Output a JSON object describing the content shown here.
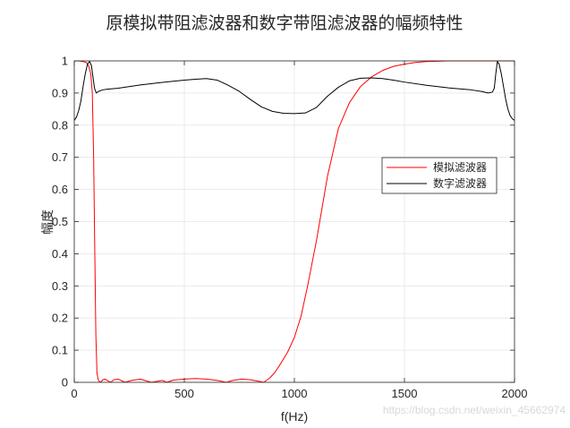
{
  "chart_data": {
    "type": "line",
    "title": "原模拟带阻滤波器和数字带阻滤波器的幅频特性",
    "xlabel": "f(Hz)",
    "ylabel": "幅度",
    "xlim": [
      0,
      2000
    ],
    "ylim": [
      0,
      1
    ],
    "xticks": [
      "0",
      "500",
      "1000",
      "1500",
      "2000"
    ],
    "yticks": [
      "0",
      "0.1",
      "0.2",
      "0.3",
      "0.4",
      "0.5",
      "0.6",
      "0.7",
      "0.8",
      "0.9",
      "1"
    ],
    "grid": true,
    "legend_position": "right",
    "series": [
      {
        "name": "模拟滤波器",
        "color": "#ff0000",
        "x": [
          0,
          20,
          40,
          55,
          65,
          75,
          82,
          88,
          93,
          98,
          103,
          108,
          113,
          120,
          130,
          140,
          150,
          165,
          180,
          200,
          230,
          260,
          300,
          350,
          400,
          420,
          450,
          500,
          550,
          600,
          650,
          690,
          720,
          760,
          800,
          840,
          860,
          875,
          890,
          910,
          930,
          950,
          970,
          1000,
          1030,
          1060,
          1100,
          1150,
          1200,
          1250,
          1300,
          1350,
          1400,
          1450,
          1500,
          1550,
          1600,
          1650,
          1700,
          1800,
          1900,
          2000
        ],
        "y": [
          1.0,
          1.0,
          0.998,
          0.995,
          0.985,
          0.96,
          0.9,
          0.7,
          0.42,
          0.15,
          0.03,
          0.01,
          0.003,
          0.0,
          0.008,
          0.01,
          0.006,
          0.0,
          0.008,
          0.01,
          0.0,
          0.006,
          0.01,
          0.0,
          0.006,
          0.0,
          0.007,
          0.01,
          0.012,
          0.01,
          0.006,
          0.0,
          0.006,
          0.01,
          0.008,
          0.003,
          0.0,
          0.007,
          0.015,
          0.03,
          0.05,
          0.072,
          0.095,
          0.14,
          0.205,
          0.3,
          0.44,
          0.64,
          0.79,
          0.87,
          0.92,
          0.95,
          0.97,
          0.983,
          0.99,
          0.995,
          0.998,
          0.999,
          1.0,
          1.0,
          1.0,
          1.0
        ]
      },
      {
        "name": "数字滤波器",
        "color": "#000000",
        "x": [
          0,
          10,
          20,
          30,
          40,
          50,
          60,
          70,
          78,
          85,
          92,
          100,
          110,
          130,
          150,
          200,
          300,
          400,
          500,
          550,
          600,
          650,
          700,
          750,
          800,
          850,
          900,
          950,
          1000,
          1050,
          1100,
          1150,
          1200,
          1250,
          1300,
          1350,
          1400,
          1450,
          1500,
          1600,
          1700,
          1800,
          1850,
          1880,
          1900,
          1908,
          1915,
          1922,
          1930,
          1940,
          1950,
          1960,
          1970,
          1980,
          1990,
          2000
        ],
        "y": [
          0.815,
          0.825,
          0.845,
          0.875,
          0.92,
          0.96,
          0.99,
          0.998,
          0.985,
          0.95,
          0.915,
          0.9,
          0.905,
          0.91,
          0.912,
          0.915,
          0.925,
          0.933,
          0.94,
          0.943,
          0.945,
          0.94,
          0.924,
          0.905,
          0.88,
          0.857,
          0.843,
          0.837,
          0.836,
          0.838,
          0.855,
          0.89,
          0.918,
          0.938,
          0.946,
          0.947,
          0.945,
          0.94,
          0.934,
          0.924,
          0.916,
          0.91,
          0.905,
          0.9,
          0.903,
          0.915,
          0.96,
          0.998,
          0.99,
          0.96,
          0.92,
          0.88,
          0.85,
          0.83,
          0.82,
          0.815
        ]
      }
    ]
  },
  "watermark": "https://blog.csdn.net/weixin_45662974"
}
